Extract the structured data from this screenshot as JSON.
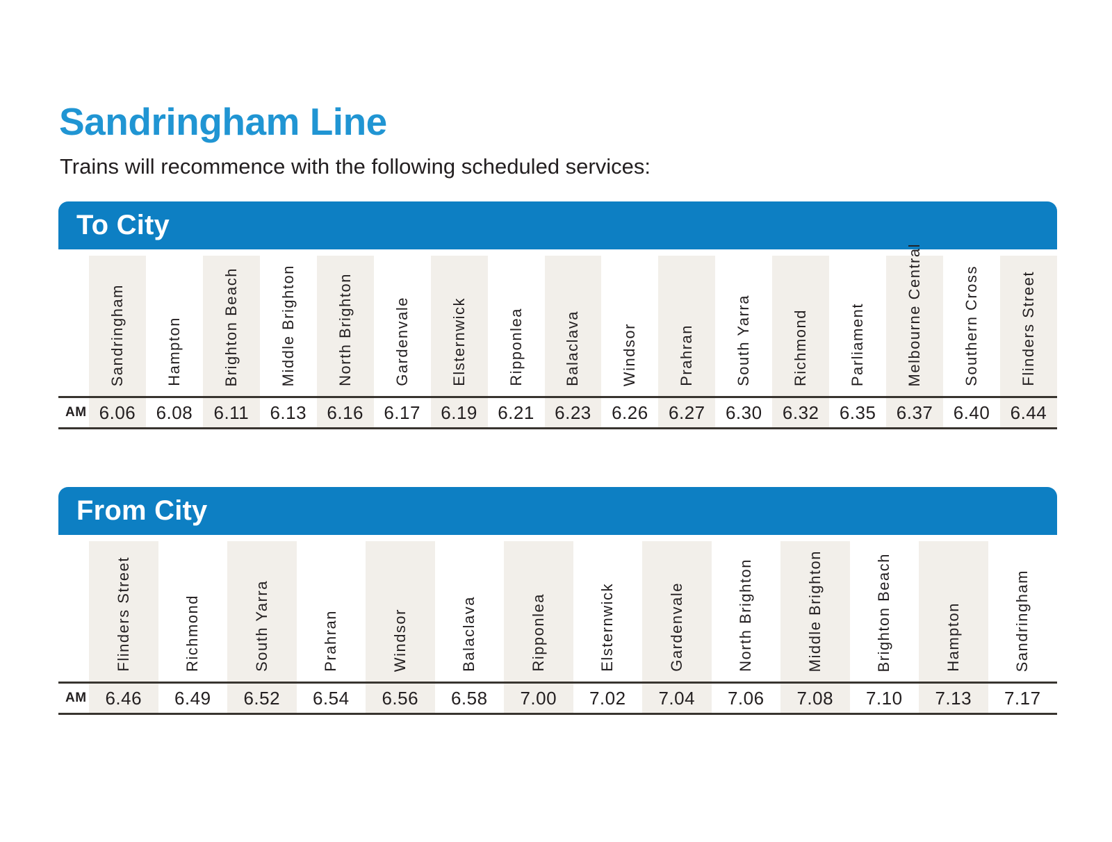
{
  "page": {
    "title": "Sandringham Line",
    "subtitle": "Trains will recommence with the following scheduled services:"
  },
  "colors": {
    "title_blue": "#2095d3",
    "header_blue": "#0d7fc3",
    "column_shade": "#f2efea",
    "rule": "#38342f",
    "text": "#231f20"
  },
  "tables": [
    {
      "title": "To City",
      "period_label": "AM",
      "stops": [
        {
          "station": "Sandringham",
          "time": "6.06"
        },
        {
          "station": "Hampton",
          "time": "6.08"
        },
        {
          "station": "Brighton Beach",
          "time": "6.11"
        },
        {
          "station": "Middle Brighton",
          "time": "6.13"
        },
        {
          "station": "North Brighton",
          "time": "6.16"
        },
        {
          "station": "Gardenvale",
          "time": "6.17"
        },
        {
          "station": "Elsternwick",
          "time": "6.19"
        },
        {
          "station": "Ripponlea",
          "time": "6.21"
        },
        {
          "station": "Balaclava",
          "time": "6.23"
        },
        {
          "station": "Windsor",
          "time": "6.26"
        },
        {
          "station": "Prahran",
          "time": "6.27"
        },
        {
          "station": "South Yarra",
          "time": "6.30"
        },
        {
          "station": "Richmond",
          "time": "6.32"
        },
        {
          "station": "Parliament",
          "time": "6.35"
        },
        {
          "station": "Melbourne Central",
          "time": "6.37"
        },
        {
          "station": "Southern Cross",
          "time": "6.40"
        },
        {
          "station": "Flinders Street",
          "time": "6.44"
        }
      ]
    },
    {
      "title": "From City",
      "period_label": "AM",
      "stops": [
        {
          "station": "Flinders Street",
          "time": "6.46"
        },
        {
          "station": "Richmond",
          "time": "6.49"
        },
        {
          "station": "South Yarra",
          "time": "6.52"
        },
        {
          "station": "Prahran",
          "time": "6.54"
        },
        {
          "station": "Windsor",
          "time": "6.56"
        },
        {
          "station": "Balaclava",
          "time": "6.58"
        },
        {
          "station": "Ripponlea",
          "time": "7.00"
        },
        {
          "station": "Elsternwick",
          "time": "7.02"
        },
        {
          "station": "Gardenvale",
          "time": "7.04"
        },
        {
          "station": "North Brighton",
          "time": "7.06"
        },
        {
          "station": "Middle Brighton",
          "time": "7.08"
        },
        {
          "station": "Brighton Beach",
          "time": "7.10"
        },
        {
          "station": "Hampton",
          "time": "7.13"
        },
        {
          "station": "Sandringham",
          "time": "7.17"
        }
      ]
    }
  ]
}
